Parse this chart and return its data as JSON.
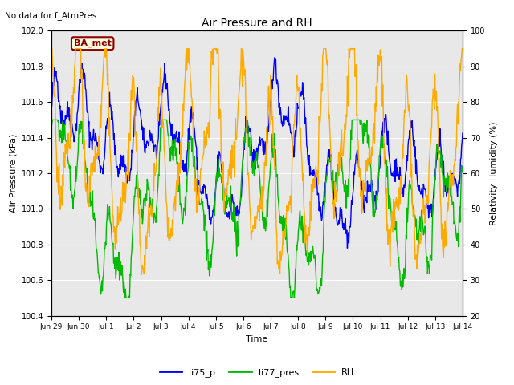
{
  "title": "Air Pressure and RH",
  "no_data_text": "No data for f_AtmPres",
  "station_label": "BA_met",
  "ylabel_left": "Air Pressure (kPa)",
  "ylabel_right": "Relativity Humidity (%)",
  "xlabel": "Time",
  "ylim_left": [
    100.4,
    102.0
  ],
  "ylim_right": [
    20,
    100
  ],
  "yticks_left": [
    100.4,
    100.6,
    100.8,
    101.0,
    101.2,
    101.4,
    101.6,
    101.8,
    102.0
  ],
  "yticks_right": [
    20,
    30,
    40,
    50,
    60,
    70,
    80,
    90,
    100
  ],
  "xtick_labels": [
    "Jun 29",
    "Jun 30",
    "Jul 1",
    "Jul 2",
    "Jul 3",
    "Jul 4",
    "Jul 5",
    "Jul 6",
    "Jul 7",
    "Jul 8",
    "Jul 9",
    "Jul 10",
    "Jul 11",
    "Jul 12",
    "Jul 13",
    "Jul 14"
  ],
  "color_li75": "#0000ff",
  "color_li77": "#00bb00",
  "color_rh": "#ffaa00",
  "background_color": "#e8e8e8",
  "legend_items": [
    "li75_p",
    "li77_pres",
    "RH"
  ],
  "legend_colors": [
    "#0000ff",
    "#00bb00",
    "#ffaa00"
  ],
  "fig_width": 6.4,
  "fig_height": 4.8,
  "dpi": 100
}
